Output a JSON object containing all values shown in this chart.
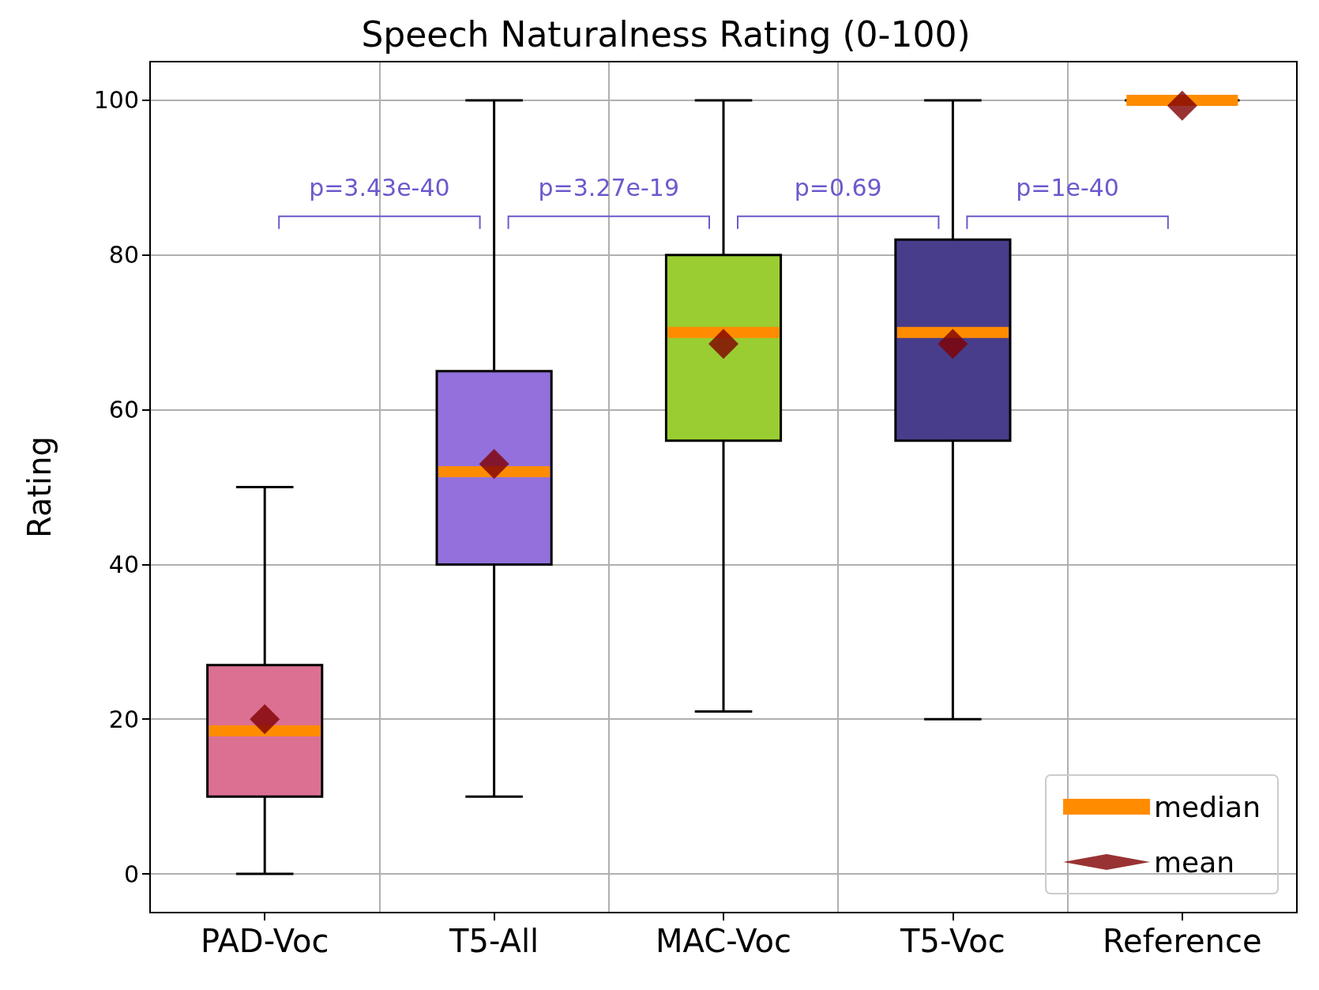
{
  "chart_data": {
    "type": "box",
    "title": "Speech Naturalness Rating (0-100)",
    "ylabel": "Rating",
    "categories": [
      "PAD-Voc",
      "T5-All",
      "MAC-Voc",
      "T5-Voc",
      "Reference"
    ],
    "series": [
      {
        "type": "box",
        "name": "median",
        "color": "#ff8c00",
        "colors": [
          "#db7093",
          "#9370db",
          "#9acd32",
          "#483d8b",
          null
        ],
        "boxes": [
          {
            "low": 0,
            "q1": 10,
            "median": 18.5,
            "q3": 27,
            "high": 50
          },
          {
            "low": 10,
            "q1": 40,
            "median": 52,
            "q3": 65,
            "high": 100
          },
          {
            "low": 21,
            "q1": 56,
            "median": 70,
            "q3": 80,
            "high": 100
          },
          {
            "low": 20,
            "q1": 56,
            "median": 70,
            "q3": 82,
            "high": 100
          },
          {
            "low": 100,
            "q1": 100,
            "median": 100,
            "q3": 100,
            "high": 100
          }
        ]
      },
      {
        "type": "scatter",
        "name": "mean",
        "color": "#800000",
        "marker": "diamond",
        "x": [
          "PAD-Voc",
          "T5-All",
          "MAC-Voc",
          "T5-Voc",
          "Reference"
        ],
        "values": [
          20,
          53,
          68.5,
          68.5,
          99.3
        ]
      }
    ],
    "annotations": [
      "p=3.43e-40",
      "p=3.27e-19",
      "p=0.69",
      "p=1e-40"
    ],
    "ylim": [
      -5,
      105
    ],
    "yticks": [
      0,
      20,
      40,
      60,
      80,
      100
    ],
    "grid": true,
    "legend": "bottom right"
  }
}
